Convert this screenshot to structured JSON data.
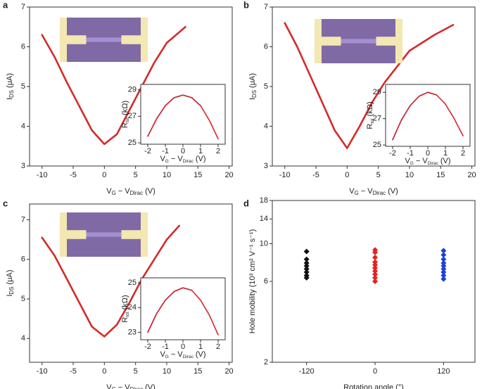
{
  "chart_data": [
    {
      "type": "line",
      "letter": "a",
      "xlabel": [
        {
          "text": "V"
        },
        {
          "text": "G",
          "sub": true
        },
        {
          "text": " − V"
        },
        {
          "text": "Dirac",
          "sub": true
        },
        {
          "text": " (V)"
        }
      ],
      "ylabel": [
        {
          "text": "I"
        },
        {
          "text": "DS",
          "sub": true
        },
        {
          "text": " (μA)"
        }
      ],
      "xlim": [
        -12,
        20.5
      ],
      "xticks": [
        -10,
        -5,
        0,
        5,
        10,
        15,
        20
      ],
      "ylim": [
        3,
        7
      ],
      "yticks": [
        3,
        4,
        5,
        6,
        7
      ],
      "series": [
        {
          "color": "#d42a2a",
          "x": [
            -10,
            -8,
            -6,
            -4,
            -2,
            0,
            2,
            4,
            6,
            8,
            10,
            13
          ],
          "values": [
            6.3,
            5.75,
            5.1,
            4.5,
            3.9,
            3.55,
            3.8,
            4.4,
            5.0,
            5.6,
            6.1,
            6.5
          ]
        }
      ],
      "inset": {
        "xlabel": [
          {
            "text": "V"
          },
          {
            "text": "G",
            "sub": true
          },
          {
            "text": " − V"
          },
          {
            "text": "Dirac",
            "sub": true
          },
          {
            "text": " (V)"
          }
        ],
        "ylabel": [
          {
            "text": "R"
          },
          {
            "text": "tot",
            "sub": true
          },
          {
            "text": " (kΩ)"
          }
        ],
        "xlim": [
          -2.4,
          2.4
        ],
        "xticks": [
          -2,
          -1,
          0,
          1,
          2
        ],
        "ylim": [
          24.9,
          29.4
        ],
        "yticks": [
          25,
          27,
          29
        ],
        "x": [
          -2,
          -1.5,
          -1,
          -0.5,
          0,
          0.5,
          1,
          1.5,
          2
        ],
        "series": [
          {
            "color": "#1f2fb5",
            "values": [
              25.5,
              26.8,
              27.8,
              28.4,
              28.6,
              28.4,
              27.8,
              null,
              null
            ]
          },
          {
            "color": "#d42a2a",
            "values": [
              25.5,
              26.8,
              27.8,
              28.4,
              28.6,
              28.4,
              27.8,
              26.7,
              25.3
            ]
          }
        ]
      }
    },
    {
      "type": "line",
      "letter": "b",
      "xlabel": [
        {
          "text": "V"
        },
        {
          "text": "G",
          "sub": true
        },
        {
          "text": " − V"
        },
        {
          "text": "Dirac",
          "sub": true
        },
        {
          "text": " (V)"
        }
      ],
      "ylabel": [
        {
          "text": "I"
        },
        {
          "text": "DS",
          "sub": true
        },
        {
          "text": " (μA)"
        }
      ],
      "xlim": [
        -12,
        20.5
      ],
      "xticks": [
        -10,
        -5,
        0,
        5,
        10,
        15,
        20
      ],
      "ylim": [
        3,
        7
      ],
      "yticks": [
        3,
        4,
        5,
        6,
        7
      ],
      "series": [
        {
          "color": "#d42a2a",
          "x": [
            -10,
            -8,
            -6,
            -4,
            -2,
            0,
            2,
            4,
            6,
            8,
            10,
            14,
            17
          ],
          "values": [
            6.6,
            6.0,
            5.3,
            4.6,
            3.9,
            3.45,
            4.0,
            4.6,
            5.1,
            5.5,
            5.9,
            6.3,
            6.55
          ]
        }
      ],
      "inset": {
        "xlabel": [
          {
            "text": "V"
          },
          {
            "text": "G",
            "sub": true
          },
          {
            "text": " − V"
          },
          {
            "text": "Dirac",
            "sub": true
          },
          {
            "text": " (V)"
          }
        ],
        "ylabel": [
          {
            "text": "R"
          },
          {
            "text": "tot",
            "sub": true
          },
          {
            "text": " (kΩ)"
          }
        ],
        "xlim": [
          -2.4,
          2.4
        ],
        "xticks": [
          -2,
          -1,
          0,
          1,
          2
        ],
        "ylim": [
          24.9,
          29.6
        ],
        "yticks": [
          25,
          27,
          29
        ],
        "x": [
          -2,
          -1.5,
          -1,
          -0.5,
          0,
          0.5,
          1,
          1.5,
          2
        ],
        "series": [
          {
            "color": "#1f2fb5",
            "values": [
              25.4,
              26.9,
              28.0,
              28.7,
              29.0,
              28.8,
              null,
              null,
              null
            ]
          },
          {
            "color": "#d42a2a",
            "values": [
              25.4,
              26.9,
              28.0,
              28.7,
              29.0,
              28.8,
              28.1,
              27.0,
              25.7
            ]
          }
        ]
      }
    },
    {
      "type": "line",
      "letter": "c",
      "xlabel": [
        {
          "text": "V"
        },
        {
          "text": "G",
          "sub": true
        },
        {
          "text": " − V"
        },
        {
          "text": "Dirac",
          "sub": true
        },
        {
          "text": " (V)"
        }
      ],
      "ylabel": [
        {
          "text": "I"
        },
        {
          "text": "DS",
          "sub": true
        },
        {
          "text": " (μA)"
        }
      ],
      "xlim": [
        -12,
        20.5
      ],
      "xticks": [
        -10,
        -5,
        0,
        5,
        10,
        15,
        20
      ],
      "ylim": [
        3.4,
        7.4
      ],
      "yticks": [
        4,
        5,
        6,
        7
      ],
      "series": [
        {
          "color": "#d42a2a",
          "x": [
            -10,
            -8,
            -6,
            -4,
            -2,
            0,
            2,
            4,
            6,
            8,
            10,
            12
          ],
          "values": [
            6.55,
            6.1,
            5.5,
            4.9,
            4.3,
            4.05,
            4.35,
            4.9,
            5.5,
            6.0,
            6.5,
            6.85
          ]
        }
      ],
      "inset": {
        "xlabel": [
          {
            "text": "V"
          },
          {
            "text": "G",
            "sub": true
          },
          {
            "text": " − V"
          },
          {
            "text": "Dirac",
            "sub": true
          },
          {
            "text": " (V)"
          }
        ],
        "ylabel": [
          {
            "text": "R"
          },
          {
            "text": "tot",
            "sub": true
          },
          {
            "text": " (kΩ)"
          }
        ],
        "xlim": [
          -2.4,
          2.4
        ],
        "xticks": [
          -2,
          -1,
          0,
          1,
          2
        ],
        "ylim": [
          22.7,
          25.2
        ],
        "yticks": [
          23,
          24,
          25
        ],
        "x": [
          -2,
          -1.5,
          -1,
          -0.5,
          0,
          0.5,
          1,
          1.5,
          2
        ],
        "series": [
          {
            "color": "#1f2fb5",
            "values": [
              23.0,
              23.75,
              24.3,
              24.65,
              24.8,
              24.7,
              null,
              null,
              null
            ]
          },
          {
            "color": "#d42a2a",
            "values": [
              23.0,
              23.75,
              24.3,
              24.65,
              24.8,
              24.7,
              24.3,
              23.7,
              22.9
            ]
          }
        ]
      }
    },
    {
      "type": "scatter",
      "letter": "d",
      "log_y": true,
      "xlabel": [
        {
          "text": "Rotation angle (°)"
        }
      ],
      "ylabel": [
        {
          "text": "Hole mobility (10³ cm² V⁻¹ s⁻¹)"
        }
      ],
      "xlim": [
        -180,
        175
      ],
      "xticks": [
        -120,
        0,
        120
      ],
      "ylim": [
        2,
        18
      ],
      "yticks": [
        2,
        6,
        10,
        14,
        18
      ],
      "series": [
        {
          "color": "#111111",
          "x": [
            -120,
            -120,
            -120,
            -120,
            -120,
            -120,
            -120,
            -120
          ],
          "values": [
            6.3,
            6.5,
            6.8,
            7.1,
            7.4,
            7.7,
            8.1,
            9.0
          ]
        },
        {
          "color": "#e52121",
          "x": [
            0,
            0,
            0,
            0,
            0,
            0,
            0,
            0,
            0,
            0
          ],
          "values": [
            6.0,
            6.3,
            6.6,
            6.9,
            7.2,
            7.5,
            7.8,
            8.3,
            8.9,
            9.2
          ]
        },
        {
          "color": "#1f3fd6",
          "x": [
            120,
            120,
            120,
            120,
            120,
            120,
            120,
            120,
            120
          ],
          "values": [
            6.2,
            6.5,
            6.8,
            7.1,
            7.4,
            7.7,
            8.1,
            8.6,
            9.1
          ]
        }
      ]
    }
  ]
}
